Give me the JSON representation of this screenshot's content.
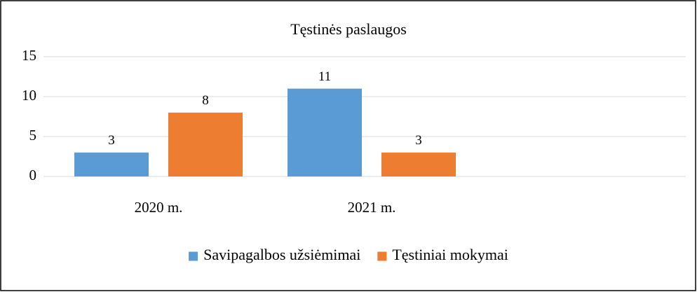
{
  "chart_data": {
    "type": "bar",
    "title": "Tęstinės paslaugos",
    "categories": [
      "2020 m.",
      "2021 m.",
      null
    ],
    "series": [
      {
        "name": "Savipagalbos užsiėmimai",
        "color": "#5b9bd5",
        "values": [
          3,
          11,
          null
        ]
      },
      {
        "name": "Tęstiniai mokymai",
        "color": "#ed7d31",
        "values": [
          8,
          3,
          null
        ]
      }
    ],
    "ylim": [
      0,
      15
    ],
    "yticks": [
      0,
      5,
      10,
      15
    ],
    "grid": true,
    "legend": "bottom"
  }
}
